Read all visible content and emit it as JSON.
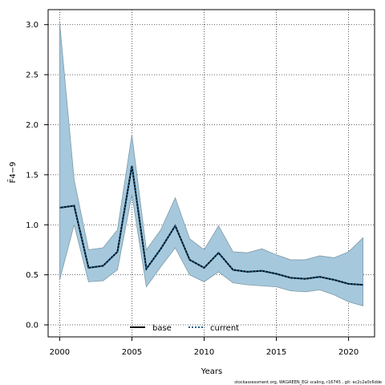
{
  "chart_data": {
    "type": "area",
    "title": "",
    "xlabel": "Years",
    "ylabel": "F̄4−9",
    "xlim": [
      1999.2,
      2021.8
    ],
    "ylim": [
      -0.12,
      3.15
    ],
    "x_ticks": [
      "2000",
      "2005",
      "2010",
      "2015",
      "2020"
    ],
    "y_ticks": [
      "0.0",
      "0.5",
      "1.0",
      "1.5",
      "2.0",
      "2.5",
      "3.0"
    ],
    "grid": true,
    "legend_position": "bottom-center",
    "x": [
      2000,
      2001,
      2002,
      2003,
      2004,
      2005,
      2006,
      2007,
      2008,
      2009,
      2010,
      2011,
      2012,
      2013,
      2014,
      2015,
      2016,
      2017,
      2018,
      2019,
      2020,
      2021
    ],
    "band": {
      "upper": [
        3.02,
        1.45,
        0.75,
        0.77,
        0.95,
        1.9,
        0.75,
        0.95,
        1.27,
        0.86,
        0.75,
        0.99,
        0.73,
        0.72,
        0.76,
        0.7,
        0.65,
        0.65,
        0.69,
        0.67,
        0.73,
        0.87
      ],
      "lower": [
        0.45,
        1.0,
        0.43,
        0.44,
        0.55,
        1.3,
        0.38,
        0.58,
        0.77,
        0.5,
        0.43,
        0.53,
        0.42,
        0.4,
        0.39,
        0.38,
        0.34,
        0.33,
        0.35,
        0.3,
        0.23,
        0.19
      ],
      "color": "#a6c8dc",
      "edge_color": "#7e9ba9"
    },
    "series": [
      {
        "name": "base",
        "color": "#000000",
        "style": "solid",
        "values": [
          1.17,
          1.19,
          0.57,
          0.59,
          0.73,
          1.59,
          0.56,
          0.76,
          0.99,
          0.65,
          0.57,
          0.72,
          0.55,
          0.53,
          0.54,
          0.51,
          0.47,
          0.46,
          0.48,
          0.45,
          0.41,
          0.4
        ]
      },
      {
        "name": "current",
        "color": "#1a5f8a",
        "style": "dotted",
        "values": [
          1.17,
          1.19,
          0.57,
          0.59,
          0.73,
          1.59,
          0.56,
          0.76,
          0.99,
          0.65,
          0.57,
          0.72,
          0.55,
          0.53,
          0.54,
          0.51,
          0.47,
          0.46,
          0.48,
          0.45,
          0.41,
          0.4
        ]
      }
    ]
  },
  "footnote": "stockassessment.org, WKGREEN_EGI scaling, r16745 , git: ec2c2a0c6dde"
}
